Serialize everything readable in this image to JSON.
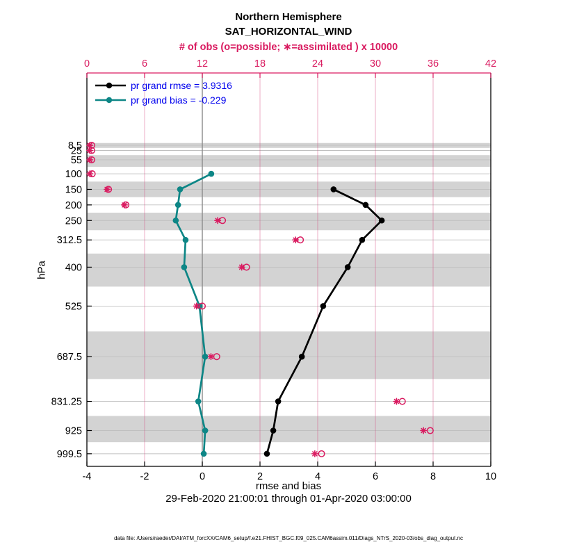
{
  "header": {
    "title_line1": "Northern Hemisphere",
    "title_line2": "SAT_HORIZONTAL_WIND",
    "obs_caption": "# of obs (o=possible; ∗=assimilated ) x 10000"
  },
  "legend": {
    "rmse_label": "pr grand rmse = 3.9316",
    "bias_label": "pr grand bias = -0.229"
  },
  "axes": {
    "y_label": "hPa",
    "x_label": "rmse and bias",
    "date_range": "29-Feb-2020 21:00:01 through 01-Apr-2020 03:00:00"
  },
  "footer": {
    "data_file": "data file: /Users/raeder/DAI/ATM_forcXX/CAM6_setup/f.e21.FHIST_BGC.f09_025.CAM6assim.011/Diags_NTrS_2020-03/obs_diag_output.nc"
  },
  "colors": {
    "rmse": "#000000",
    "bias": "#0d8686",
    "obs": "#d91b60",
    "grid_pink": "#d4487e",
    "legend_text": "#0000ee",
    "band": "#d3d3d3",
    "grid_h": "#c0c0c0",
    "zero_line": "#8a8a8a",
    "axis_black": "#000000"
  },
  "chart_data": {
    "type": "line",
    "title": "Northern Hemisphere",
    "subtitle": "SAT_HORIZONTAL_WIND",
    "orientation": "vertical profile, pressure increasing downward, linear scale",
    "y_axis": {
      "label": "hPa",
      "range": [
        -224,
        1040
      ],
      "tick_values": [
        8.5,
        25,
        55,
        100,
        150,
        200,
        250,
        312.5,
        400,
        525,
        687.5,
        831.25,
        925,
        999.5
      ],
      "tick_labels": [
        "8.5",
        "25",
        "55",
        "100",
        "150",
        "200",
        "250",
        "312.5",
        "400",
        "525",
        "687.5",
        "831.25",
        "925",
        "999.5"
      ]
    },
    "x_bottom_axis": {
      "label": "rmse and bias",
      "range": [
        -4,
        10
      ],
      "tick_values": [
        -4,
        -2,
        0,
        2,
        4,
        6,
        8,
        10
      ],
      "tick_labels": [
        "-4",
        "-2",
        "0",
        "2",
        "4",
        "6",
        "8",
        "10"
      ]
    },
    "x_top_axis": {
      "label": "# of obs (o=possible; ∗=assimilated ) x 10000",
      "range": [
        0,
        42
      ],
      "tick_values": [
        0,
        6,
        12,
        18,
        24,
        30,
        36,
        42
      ],
      "tick_labels": [
        "0",
        "6",
        "12",
        "18",
        "24",
        "30",
        "36",
        "42"
      ],
      "gridline_values": [
        6,
        12,
        18,
        24,
        30,
        36
      ]
    },
    "zero_reference_x_bottom": 0,
    "series": [
      {
        "name": "pr grand rmse",
        "grand_value": 3.9316,
        "color_key": "rmse",
        "axis": "x_bottom_axis",
        "points": [
          {
            "level_hpa": 150,
            "value": 4.55
          },
          {
            "level_hpa": 200,
            "value": 5.66
          },
          {
            "level_hpa": 250,
            "value": 6.22
          },
          {
            "level_hpa": 312.5,
            "value": 5.54
          },
          {
            "level_hpa": 400,
            "value": 5.04
          },
          {
            "level_hpa": 525,
            "value": 4.19
          },
          {
            "level_hpa": 687.5,
            "value": 3.45
          },
          {
            "level_hpa": 831.25,
            "value": 2.63
          },
          {
            "level_hpa": 925,
            "value": 2.46
          },
          {
            "level_hpa": 999.5,
            "value": 2.24
          }
        ]
      },
      {
        "name": "pr grand bias",
        "grand_value": -0.229,
        "color_key": "bias",
        "axis": "x_bottom_axis",
        "points": [
          {
            "level_hpa": 100,
            "value": 0.31
          },
          {
            "level_hpa": 150,
            "value": -0.77
          },
          {
            "level_hpa": 200,
            "value": -0.84
          },
          {
            "level_hpa": 250,
            "value": -0.92
          },
          {
            "level_hpa": 312.5,
            "value": -0.58
          },
          {
            "level_hpa": 400,
            "value": -0.63
          },
          {
            "level_hpa": 525,
            "value": -0.1
          },
          {
            "level_hpa": 687.5,
            "value": 0.1
          },
          {
            "level_hpa": 831.25,
            "value": -0.14
          },
          {
            "level_hpa": 925,
            "value": 0.1
          },
          {
            "level_hpa": 999.5,
            "value": 0.05
          }
        ]
      }
    ],
    "obs_counts_x10000": [
      {
        "level_hpa": 8.5,
        "assimilated": 0.3,
        "possible": 0.5
      },
      {
        "level_hpa": 25,
        "assimilated": 0.3,
        "possible": 0.5
      },
      {
        "level_hpa": 55,
        "assimilated": 0.3,
        "possible": 0.5
      },
      {
        "level_hpa": 100,
        "assimilated": 0.3,
        "possible": 0.55
      },
      {
        "level_hpa": 150,
        "assimilated": 2.1,
        "possible": 2.25
      },
      {
        "level_hpa": 200,
        "assimilated": 3.9,
        "possible": 4.05
      },
      {
        "level_hpa": 250,
        "assimilated": 13.6,
        "possible": 14.1
      },
      {
        "level_hpa": 312.5,
        "assimilated": 21.7,
        "possible": 22.2
      },
      {
        "level_hpa": 400,
        "assimilated": 16.1,
        "possible": 16.6
      },
      {
        "level_hpa": 525,
        "assimilated": 11.4,
        "possible": 12.0
      },
      {
        "level_hpa": 687.5,
        "assimilated": 12.9,
        "possible": 13.5
      },
      {
        "level_hpa": 831.25,
        "assimilated": 32.2,
        "possible": 32.8
      },
      {
        "level_hpa": 925,
        "assimilated": 35.0,
        "possible": 35.7
      },
      {
        "level_hpa": 999.5,
        "assimilated": 23.7,
        "possible": 24.4
      }
    ],
    "gray_bands_hpa": [
      [
        1,
        16.75
      ],
      [
        40,
        77.5
      ],
      [
        125,
        175
      ],
      [
        225,
        281.25
      ],
      [
        356.25,
        462.5
      ],
      [
        606.25,
        759.375
      ],
      [
        878.125,
        962.25
      ]
    ],
    "legend_position": "top-left inside plot",
    "grid": "horizontal gray at each pressure tick; vertical pink at top-axis ticks"
  }
}
